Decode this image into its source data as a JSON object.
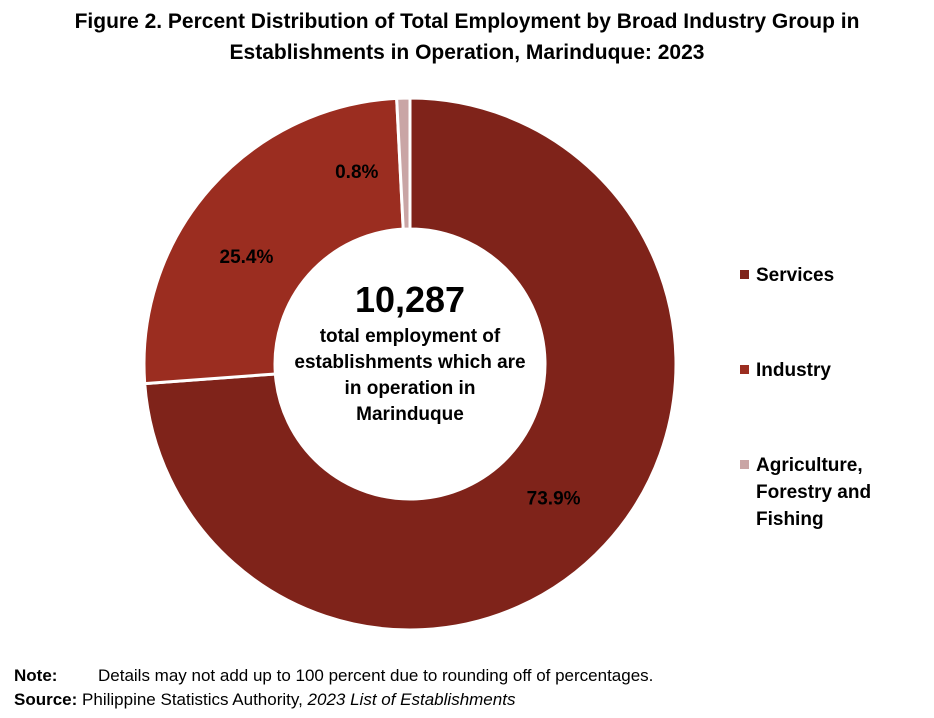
{
  "title": {
    "line1": "Figure 2. Percent Distribution of Total Employment by Broad Industry Group in",
    "line2": "Establishments in Operation, Marinduque: 2023"
  },
  "center": {
    "value": "10,287",
    "lines": [
      "total employment of",
      "establishments which are",
      "in operation in",
      "Marinduque"
    ]
  },
  "chart_data": {
    "type": "pie",
    "style": "donut",
    "title": "Figure 2. Percent Distribution of Total Employment by Broad Industry Group in Establishments in Operation, Marinduque: 2023",
    "categories": [
      "Services",
      "Industry",
      "Agriculture, Forestry and Fishing"
    ],
    "values": [
      73.9,
      25.4,
      0.8
    ],
    "data_labels": [
      "73.9%",
      "25.4%",
      "0.8%"
    ],
    "colors": [
      "#7F231A",
      "#9B2D20",
      "#C9A5A5"
    ],
    "legend_position": "right",
    "total_label": "10,287"
  },
  "legend": [
    {
      "label_lines": [
        "Services"
      ],
      "color": "#7F231A"
    },
    {
      "label_lines": [
        "Industry"
      ],
      "color": "#9B2D20"
    },
    {
      "label_lines": [
        "Agriculture,",
        "Forestry and",
        "Fishing"
      ],
      "color": "#C9A5A5"
    }
  ],
  "footnote": {
    "note_label": "Note:",
    "note_text": "Details may not add up to 100 percent due to rounding off of percentages.",
    "source_label": "Source:",
    "source_text": "Philippine Statistics Authority, ",
    "source_italic": "2023 List of Establishments"
  }
}
